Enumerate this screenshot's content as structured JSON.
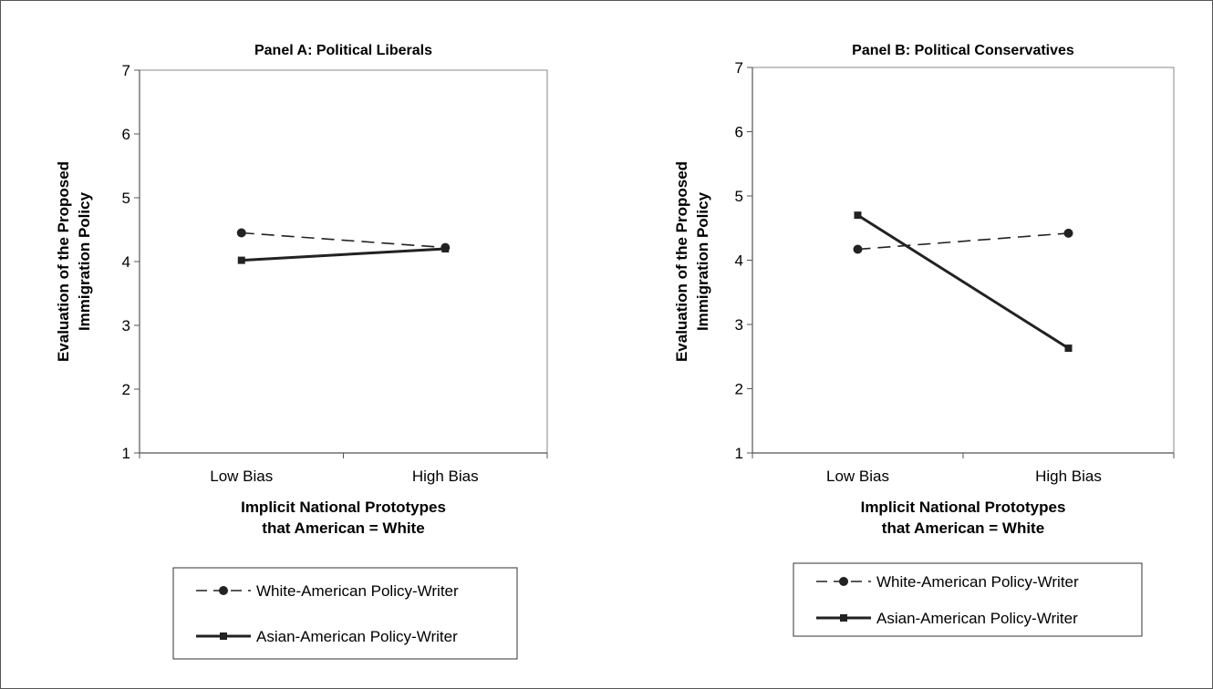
{
  "chart_data": [
    {
      "type": "line",
      "title": "Panel A: Political Liberals",
      "xlabel_lines": [
        "Implicit National Prototypes",
        "that American = White"
      ],
      "ylabel_lines": [
        "Evaluation of the Proposed",
        "Immigration Policy"
      ],
      "categories": [
        "Low Bias",
        "High Bias"
      ],
      "ylim": [
        1,
        7
      ],
      "yticks": [
        "1",
        "2",
        "3",
        "4",
        "5",
        "6",
        "7"
      ],
      "series": [
        {
          "name": "White-American Policy-Writer",
          "values": [
            4.45,
            4.22
          ],
          "dash": "dashed",
          "marker": "circle"
        },
        {
          "name": "Asian-American Policy-Writer",
          "values": [
            4.02,
            4.2
          ],
          "dash": "solid",
          "marker": "square"
        }
      ],
      "grid": false,
      "legend": "bottom"
    },
    {
      "type": "line",
      "title": "Panel B: Political Conservatives",
      "xlabel_lines": [
        "Implicit National Prototypes",
        "that American = White"
      ],
      "ylabel_lines": [
        "Evaluation of the Proposed",
        "Immigration Policy"
      ],
      "categories": [
        "Low Bias",
        "High Bias"
      ],
      "ylim": [
        1,
        7
      ],
      "yticks": [
        "1",
        "2",
        "3",
        "4",
        "5",
        "6",
        "7"
      ],
      "series": [
        {
          "name": "White-American Policy-Writer",
          "values": [
            4.17,
            4.42
          ],
          "dash": "dashed",
          "marker": "circle"
        },
        {
          "name": "Asian-American Policy-Writer",
          "values": [
            4.7,
            2.63
          ],
          "dash": "solid",
          "marker": "square"
        }
      ],
      "grid": false,
      "legend": "bottom"
    }
  ],
  "colors": {
    "line": "#222222",
    "axis": "#555555",
    "plot_border": "#888888"
  }
}
